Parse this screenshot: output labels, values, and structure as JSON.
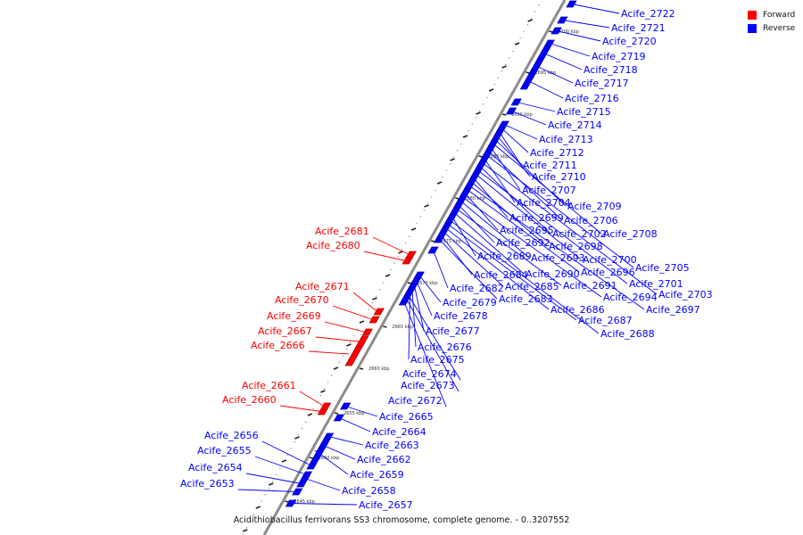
{
  "colors": {
    "forward": "#ff0000",
    "reverse": "#0000ff"
  },
  "legend": {
    "forward": "Forward",
    "reverse": "Reverse"
  },
  "caption": "Acidithiobacillus ferrivorans SS3 chromosome, complete genome. - 0..3207552",
  "ticks": [
    "2645 kbp",
    "2650 kbp",
    "2655 kbp",
    "2660 kbp",
    "2665 kbp",
    "2670 kbp",
    "2675 kbp",
    "2680 kbp",
    "2685 kbp",
    "2690 kbp",
    "2695 kbp",
    "2700 kbp"
  ],
  "forward_genes": [
    "Acife_2660",
    "Acife_2661",
    "Acife_2666",
    "Acife_2667",
    "Acife_2669",
    "Acife_2670",
    "Acife_2671",
    "Acife_2680",
    "Acife_2681"
  ],
  "reverse_genes": [
    "Acife_2653",
    "Acife_2654",
    "Acife_2655",
    "Acife_2656",
    "Acife_2657",
    "Acife_2658",
    "Acife_2659",
    "Acife_2662",
    "Acife_2663",
    "Acife_2664",
    "Acife_2665",
    "Acife_2672",
    "Acife_2673",
    "Acife_2674",
    "Acife_2675",
    "Acife_2676",
    "Acife_2677",
    "Acife_2678",
    "Acife_2679",
    "Acife_2682",
    "Acife_2683",
    "Acife_2684",
    "Acife_2685",
    "Acife_2686",
    "Acife_2687",
    "Acife_2688",
    "Acife_2689",
    "Acife_2690",
    "Acife_2691",
    "Acife_2692",
    "Acife_2693",
    "Acife_2694",
    "Acife_2695",
    "Acife_2696",
    "Acife_2697",
    "Acife_2698",
    "Acife_2699",
    "Acife_2700",
    "Acife_2701",
    "Acife_2702",
    "Acife_2703",
    "Acife_2704",
    "Acife_2705",
    "Acife_2706",
    "Acife_2707",
    "Acife_2708",
    "Acife_2709",
    "Acife_2710",
    "Acife_2711",
    "Acife_2712",
    "Acife_2713",
    "Acife_2714",
    "Acife_2715",
    "Acife_2716",
    "Acife_2717",
    "Acife_2718",
    "Acife_2719",
    "Acife_2720",
    "Acife_2721",
    "Acife_2722"
  ]
}
